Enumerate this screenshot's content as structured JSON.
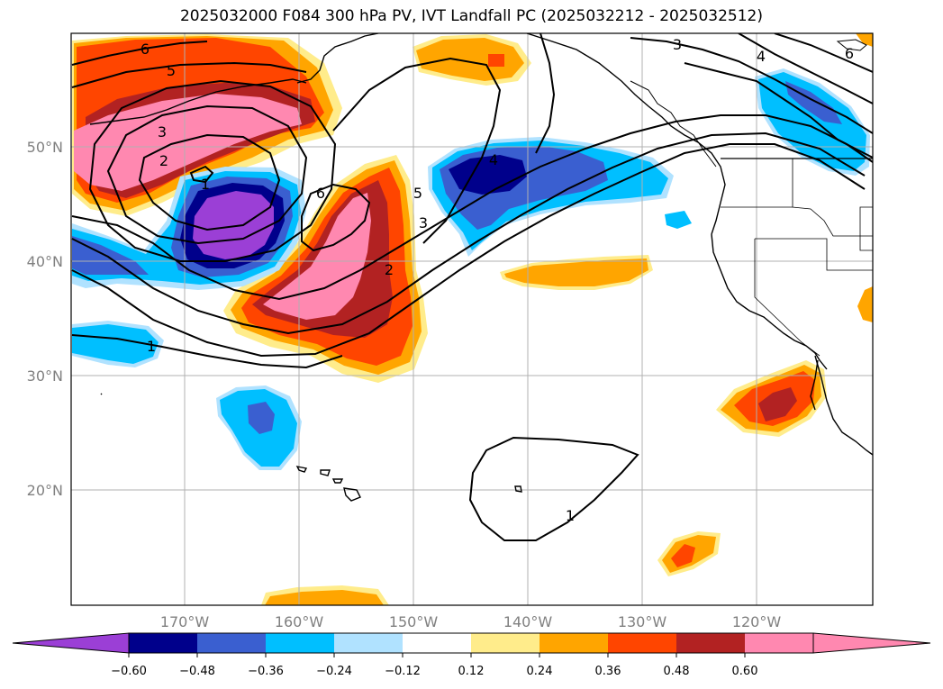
{
  "title": "2025032000 F084 300 hPa PV, IVT Landfall PC (2025032212 - 2025032512)",
  "map": {
    "lat_labels": [
      "50°N",
      "40°N",
      "30°N",
      "20°N"
    ],
    "lon_labels": [
      "170°W",
      "160°W",
      "150°W",
      "140°W",
      "130°W",
      "120°W"
    ],
    "contour_labels": [
      "6",
      "5",
      "3",
      "2",
      "1",
      "6",
      "5",
      "3",
      "2",
      "4",
      "3",
      "4",
      "6",
      "1",
      "1"
    ]
  },
  "colorbar": {
    "ticks": [
      "−0.60",
      "−0.48",
      "−0.36",
      "−0.24",
      "−0.12",
      "0.12",
      "0.24",
      "0.36",
      "0.48",
      "0.60"
    ],
    "colors": [
      "#9b3fd6",
      "#00008b",
      "#3a5fd0",
      "#00bfff",
      "#b0e2ff",
      "#ffffff",
      "#ffec8b",
      "#ffa500",
      "#ff4500",
      "#b22222",
      "#ff88b0",
      "#ff88b0"
    ]
  }
}
